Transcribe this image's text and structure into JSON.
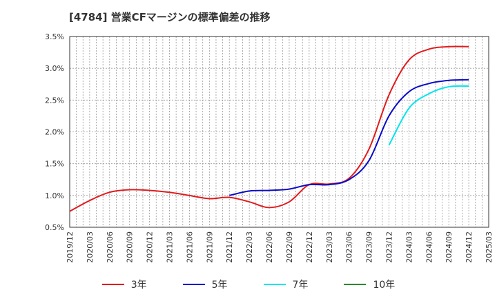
{
  "chart_data": {
    "type": "line",
    "title": "[4784]  営業CFマージンの標準偏差の推移",
    "xlabel": "",
    "ylabel": "",
    "x_ticks": [
      "2019/12",
      "2020/03",
      "2020/06",
      "2020/09",
      "2020/12",
      "2021/03",
      "2021/06",
      "2021/09",
      "2021/12",
      "2022/03",
      "2022/06",
      "2022/09",
      "2022/12",
      "2023/03",
      "2023/06",
      "2023/09",
      "2023/12",
      "2024/03",
      "2024/06",
      "2024/09",
      "2024/12",
      "2025/03"
    ],
    "y_ticks": [
      "0.5%",
      "1.0%",
      "1.5%",
      "2.0%",
      "2.5%",
      "3.0%",
      "3.5%"
    ],
    "ylim": [
      0.5,
      3.5
    ],
    "grid": true,
    "legend_placement": "bottom",
    "series": [
      {
        "name": "3年",
        "color": "#e31a1c",
        "x": [
          "2019/12",
          "2020/03",
          "2020/06",
          "2020/09",
          "2020/12",
          "2021/03",
          "2021/06",
          "2021/09",
          "2021/12",
          "2022/03",
          "2022/06",
          "2022/09",
          "2022/12",
          "2023/03",
          "2023/06",
          "2023/09",
          "2023/12",
          "2024/03",
          "2024/06",
          "2024/09",
          "2024/12"
        ],
        "values": [
          0.75,
          0.92,
          1.05,
          1.09,
          1.08,
          1.05,
          1.0,
          0.95,
          0.97,
          0.9,
          0.81,
          0.9,
          1.17,
          1.18,
          1.27,
          1.73,
          2.58,
          3.13,
          3.3,
          3.34,
          3.34
        ]
      },
      {
        "name": "5年",
        "color": "#0a0ac8",
        "x": [
          "2021/12",
          "2022/03",
          "2022/06",
          "2022/09",
          "2022/12",
          "2023/03",
          "2023/06",
          "2023/09",
          "2023/12",
          "2024/03",
          "2024/06",
          "2024/09",
          "2024/12"
        ],
        "values": [
          1.0,
          1.07,
          1.08,
          1.1,
          1.17,
          1.17,
          1.25,
          1.55,
          2.25,
          2.63,
          2.76,
          2.81,
          2.82
        ]
      },
      {
        "name": "7年",
        "color": "#00e5ee",
        "x": [
          "2023/12",
          "2024/03",
          "2024/06",
          "2024/09",
          "2024/12"
        ],
        "values": [
          1.79,
          2.37,
          2.6,
          2.71,
          2.72
        ]
      },
      {
        "name": "10年",
        "color": "#2a8a2a",
        "x": [],
        "values": []
      }
    ]
  }
}
